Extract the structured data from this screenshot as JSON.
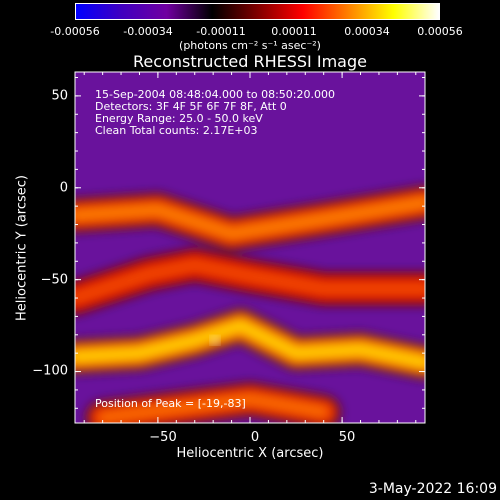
{
  "colorbar": {
    "ticks": [
      "-0.00056",
      "-0.00034",
      "-0.00011",
      "0.00011",
      "0.00034",
      "0.00056"
    ],
    "units": "(photons cm⁻² s⁻¹ asec⁻²)",
    "colors": [
      "#0000ff",
      "#4000c0",
      "#7000a0",
      "#000000",
      "#800000",
      "#ff0000",
      "#ff8000",
      "#ffff00",
      "#ffffff"
    ]
  },
  "annotations": {
    "time": "15-Sep-2004 08:48:04.000 to 08:50:20.000",
    "detectors": "Detectors: 3F 4F 5F 6F 7F 8F, Att 0",
    "energy": "Energy Range: 25.0 - 50.0 keV",
    "clean": "Clean     Total counts: 2.17E+03",
    "peak": "Position of Peak = [-19,-83]"
  },
  "chart_data": {
    "type": "heatmap",
    "title": "Reconstructed RHESSI Image",
    "xlabel": "Heliocentric X (arcsec)",
    "ylabel": "Heliocentric Y (arcsec)",
    "xlim": [
      -95,
      95
    ],
    "ylim": [
      -128,
      63
    ],
    "x_ticks": [
      -50,
      0,
      50
    ],
    "y_ticks": [
      50,
      0,
      -50,
      -100
    ],
    "x_tick_labels": [
      "−50",
      "0",
      "50"
    ],
    "y_tick_labels": [
      "50",
      "0",
      "−50",
      "−100"
    ],
    "color_range": [
      -0.00056,
      0.00056
    ],
    "peak_position": [
      -19,
      -83
    ],
    "bright_bands": [
      {
        "points": [
          [
            -95,
            -15
          ],
          [
            -50,
            -12
          ],
          [
            -10,
            -25
          ],
          [
            40,
            -17
          ],
          [
            95,
            -8
          ]
        ],
        "peak": 0.00036
      },
      {
        "points": [
          [
            -95,
            -60
          ],
          [
            -55,
            -47
          ],
          [
            -30,
            -42
          ],
          [
            0,
            -48
          ],
          [
            40,
            -55
          ],
          [
            95,
            -55
          ]
        ],
        "peak": 0.0003
      },
      {
        "points": [
          [
            -95,
            -92
          ],
          [
            -60,
            -90
          ],
          [
            -30,
            -83
          ],
          [
            -5,
            -75
          ],
          [
            25,
            -90
          ],
          [
            60,
            -88
          ],
          [
            95,
            -95
          ]
        ],
        "peak": 0.00046
      },
      {
        "points": [
          [
            -80,
            -125
          ],
          [
            -40,
            -120
          ],
          [
            0,
            -115
          ],
          [
            40,
            -122
          ]
        ],
        "peak": 0.00034
      }
    ],
    "background_level": -0.00022
  },
  "timestamp": "3-May-2022 16:09"
}
